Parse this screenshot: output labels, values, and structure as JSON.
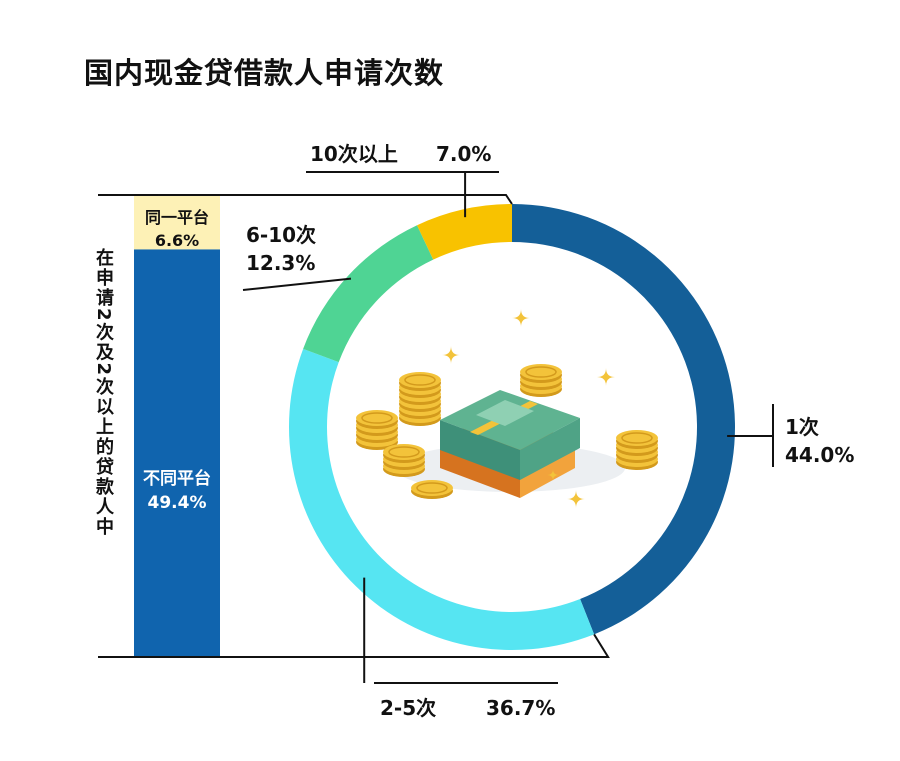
{
  "title": "国内现金贷借款人申请次数",
  "chart_data": [
    {
      "type": "pie",
      "variant": "donut",
      "categories": [
        "1次",
        "2-5次",
        "6-10次",
        "10次以上"
      ],
      "values": [
        44.0,
        36.7,
        12.3,
        7.0
      ],
      "value_labels": [
        "44.0%",
        "36.7%",
        "12.3%",
        "7.0%"
      ],
      "colors": [
        "#145f98",
        "#56e5f2",
        "#4fd494",
        "#f8c200"
      ],
      "start": "top (12 o'clock), clockwise"
    },
    {
      "type": "bar",
      "stacked": true,
      "axis_label": "在申请2次及2次以上的贷款人中",
      "categories": [
        "同一平台",
        "不同平台"
      ],
      "values": [
        6.6,
        49.4
      ],
      "value_labels": [
        "6.6%",
        "49.4%"
      ],
      "colors": [
        "#fdf1b6",
        "#1064ae"
      ]
    }
  ],
  "illustration": {
    "name": "cash-and-coins-icon",
    "colors": [
      "#f3c33a",
      "#3e9079"
    ]
  }
}
